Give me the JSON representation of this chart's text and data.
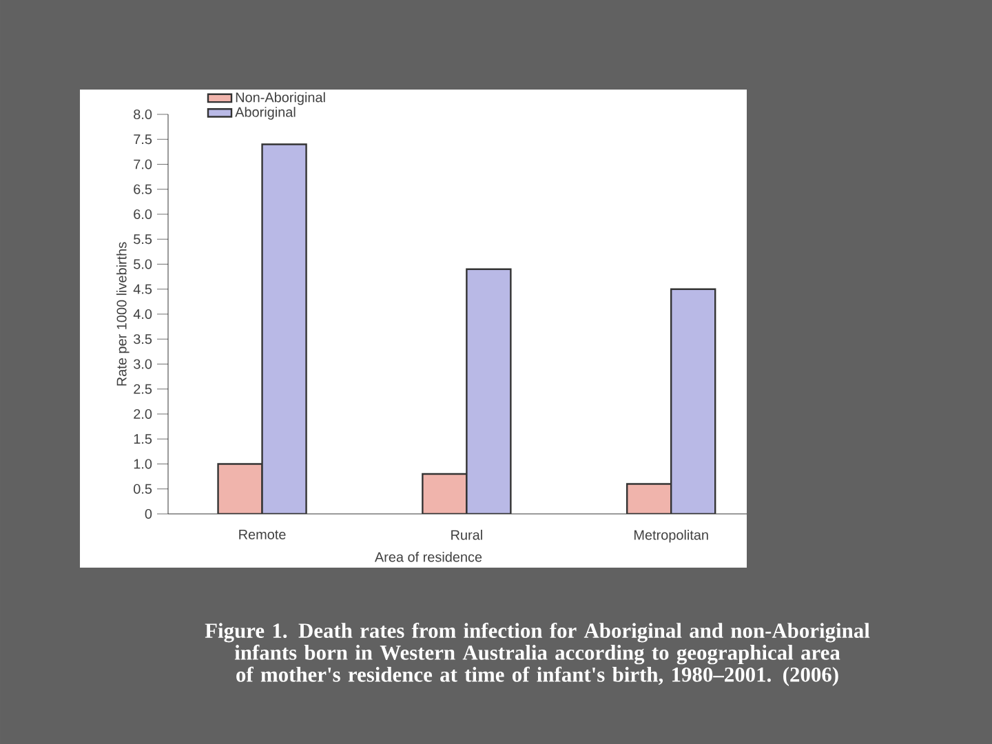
{
  "chart_data": {
    "type": "bar",
    "title": "Figure 1. Death rates from infection for Aboriginal and non-Aboriginal infants born in Western Australia according to geographical area of mother's residence at time of infant's birth, 1980–2001. (2006)",
    "xlabel": "Area of residence",
    "ylabel": "Rate per 1000 livebirths",
    "categories": [
      "Remote",
      "Rural",
      "Metropolitan"
    ],
    "series": [
      {
        "name": "Non-Aboriginal",
        "color": "#f0b4ac",
        "values": [
          1.0,
          0.8,
          0.6
        ]
      },
      {
        "name": "Aboriginal",
        "color": "#b9b9e6",
        "values": [
          7.4,
          4.9,
          4.5
        ]
      }
    ],
    "ylim": [
      0,
      8
    ],
    "yticks": [
      0,
      0.5,
      {
        "value": 1,
        "label": "1.0"
      },
      1.5,
      {
        "value": 2,
        "label": "2.0"
      },
      2.5,
      {
        "value": 3,
        "label": "3.0"
      },
      3.5,
      {
        "value": 4,
        "label": "4.0"
      },
      4.5,
      {
        "value": 5,
        "label": "5.0"
      },
      5.5,
      {
        "value": 6,
        "label": "6.0"
      },
      6.5,
      {
        "value": 7,
        "label": "7.0"
      },
      7.5,
      {
        "value": 8,
        "label": "8.0"
      }
    ],
    "legend": "top left"
  }
}
